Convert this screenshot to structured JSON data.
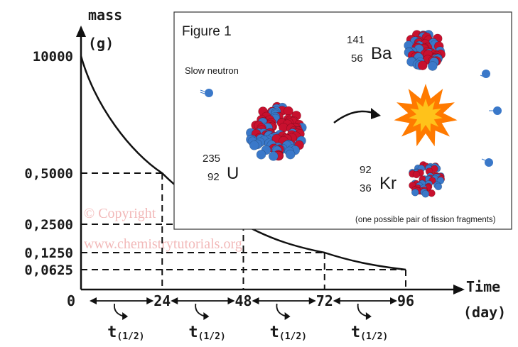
{
  "chart_data": {
    "type": "line",
    "y_axis_title": [
      "mass",
      "(g)"
    ],
    "x_axis_title": [
      "Time",
      "(day)"
    ],
    "x": [
      0,
      24,
      48,
      72,
      96
    ],
    "values": [
      10000,
      0.5,
      0.25,
      0.125,
      0.0625
    ],
    "x_tick_labels": [
      "0",
      "24",
      "48",
      "72",
      "96"
    ],
    "y_tick_labels": [
      "10000",
      "0,5000",
      "0,2500",
      "0,1250",
      "0,0625"
    ],
    "guide_lines": "dashed",
    "half_life_label": "t",
    "half_life_subscript": "(1/2)",
    "half_life_count": 4
  },
  "watermark": [
    "© Copyright",
    "www.chemistrytutorials.org"
  ],
  "figure": {
    "title": "Figure 1",
    "neutron_label": "Slow neutron",
    "uranium": {
      "mass": "235",
      "number": "92",
      "symbol": "U"
    },
    "barium": {
      "mass": "141",
      "number": "56",
      "symbol": "Ba"
    },
    "krypton": {
      "mass": "92",
      "number": "36",
      "symbol": "Kr"
    },
    "caption": "(one possible pair of fission fragments)",
    "colors": {
      "proton": "#c8102e",
      "neutron": "#3a78c9",
      "flash": "#ff7a00"
    }
  }
}
